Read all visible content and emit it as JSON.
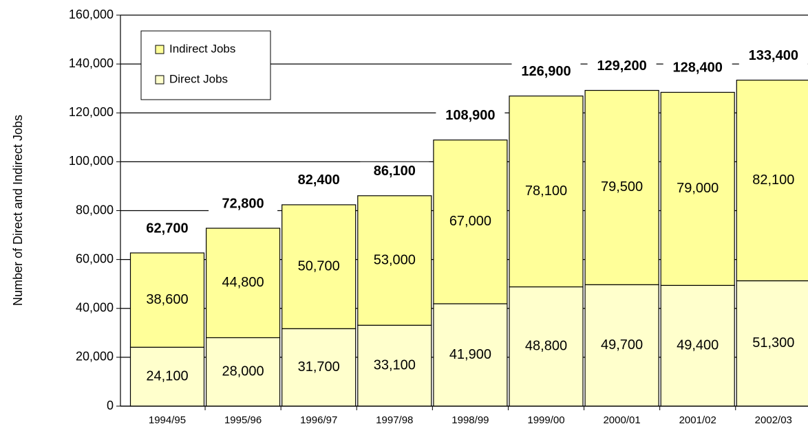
{
  "chart_data": {
    "type": "stacked_bar",
    "y_label": "Number of Direct and Indirect Jobs",
    "categories": [
      "1994/95",
      "1995/96",
      "1996/97",
      "1997/98",
      "1998/99",
      "1999/00",
      "2000/01",
      "2001/02",
      "2002/03"
    ],
    "series": [
      {
        "name": "Direct Jobs",
        "color": "#ffffcc",
        "values": [
          24100,
          28000,
          31700,
          33100,
          41900,
          48800,
          49700,
          49400,
          51300
        ],
        "value_labels": [
          "24,100",
          "28,000",
          "31,700",
          "33,100",
          "41,900",
          "48,800",
          "49,700",
          "49,400",
          "51,300"
        ]
      },
      {
        "name": "Indirect Jobs",
        "color": "#ffff99",
        "values": [
          38600,
          44800,
          50700,
          53000,
          67000,
          78100,
          79500,
          79000,
          82100
        ],
        "value_labels": [
          "38,600",
          "44,800",
          "50,700",
          "53,000",
          "67,000",
          "78,100",
          "79,500",
          "79,000",
          "82,100"
        ]
      }
    ],
    "totals": [
      62700,
      72800,
      82400,
      86100,
      108900,
      126900,
      129200,
      128400,
      133400
    ],
    "total_labels": [
      "62,700",
      "72,800",
      "82,400",
      "86,100",
      "108,900",
      "126,900",
      "129,200",
      "128,400",
      "133,400"
    ],
    "ylim": [
      0,
      160000
    ],
    "yticks": [
      0,
      {
        "value": 20000,
        "label": "20,000"
      },
      {
        "value": 40000,
        "label": "40,000"
      },
      {
        "value": 60000,
        "label": "60,000"
      },
      {
        "value": 80000,
        "label": "80,000"
      },
      {
        "value": 100000,
        "label": "100,000"
      },
      {
        "value": 120000,
        "label": "120,000"
      },
      {
        "value": 140000,
        "label": "140,000"
      },
      {
        "value": 160000,
        "label": "160,000"
      }
    ],
    "grid": true,
    "legend": "upper left"
  }
}
